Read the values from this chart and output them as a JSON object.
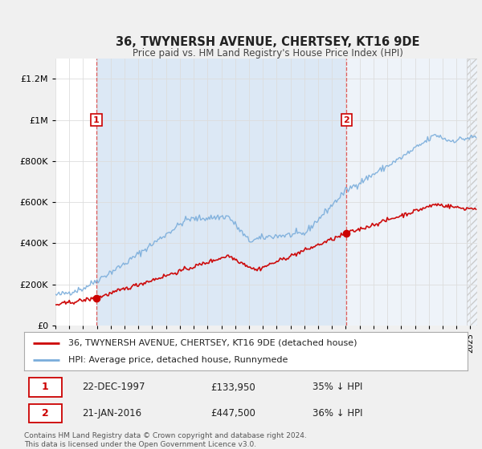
{
  "title": "36, TWYNERSH AVENUE, CHERTSEY, KT16 9DE",
  "subtitle": "Price paid vs. HM Land Registry's House Price Index (HPI)",
  "sale1_date": "22-DEC-1997",
  "sale1_price": 133950,
  "sale1_hpi": "35% ↓ HPI",
  "sale2_date": "21-JAN-2016",
  "sale2_price": 447500,
  "sale2_hpi": "36% ↓ HPI",
  "legend_property": "36, TWYNERSH AVENUE, CHERTSEY, KT16 9DE (detached house)",
  "legend_hpi": "HPI: Average price, detached house, Runnymede",
  "footnote": "Contains HM Land Registry data © Crown copyright and database right 2024.\nThis data is licensed under the Open Government Licence v3.0.",
  "line_color_property": "#cc0000",
  "line_color_hpi": "#7aaddb",
  "background_color": "#f0f0f0",
  "plot_bg_color": "#ffffff",
  "shade_between_color": "#dce8f5",
  "shade_after_color": "#eef3f9",
  "ylim": [
    0,
    1300000
  ],
  "xlim_start": 1995.0,
  "xlim_end": 2025.5,
  "sale1_x": 1997.96,
  "sale2_x": 2016.04
}
